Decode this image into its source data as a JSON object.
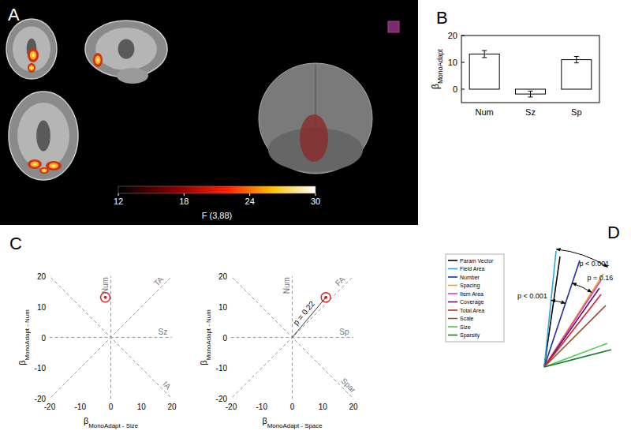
{
  "chart_data": [
    {
      "type": "brain_map",
      "panel_label": "A",
      "colorbar": {
        "range": [
          12,
          30
        ],
        "ticks": [
          12,
          18,
          24,
          30
        ],
        "label": "F (3,88)"
      }
    },
    {
      "type": "bar",
      "panel_label": "B",
      "categories": [
        "Num",
        "Sz",
        "Sp"
      ],
      "values": [
        13.1,
        -1.8,
        11.0
      ],
      "errors": [
        1.3,
        1.1,
        1.2
      ],
      "color": "#ffffff",
      "y_label": {
        "base": "β",
        "sub": "MonoAdapt"
      },
      "ylim": [
        -5,
        20
      ],
      "yticks": [
        0,
        10,
        20
      ]
    },
    {
      "type": "scatter",
      "panel_label": "C",
      "x": [
        -1.8
      ],
      "y": [
        13.1
      ],
      "color": "#e02020",
      "marker": "circle",
      "xlim": [
        -20,
        20
      ],
      "ylim": [
        -20,
        20
      ],
      "xticks": [
        -20,
        -10,
        0,
        10,
        20
      ],
      "yticks": [
        -20,
        -10,
        0,
        10,
        20
      ],
      "x_label": {
        "base": "β",
        "sub": "MonoAdapt - Size"
      },
      "y_label": {
        "base": "β",
        "sub": "MonoAdapt - Num"
      },
      "line_style": "dashed",
      "reference_lines": [
        {
          "label": "Num",
          "dx": 0,
          "dy": 1
        },
        {
          "label": "TA",
          "dx": 1,
          "dy": 1
        },
        {
          "label": "Sz",
          "dx": 1,
          "dy": 0
        },
        {
          "label": "IA",
          "dx": 1,
          "dy": -1
        }
      ]
    },
    {
      "type": "scatter",
      "x": [
        11.0
      ],
      "y": [
        13.1
      ],
      "color": "#e02020",
      "marker": "circle",
      "xlim": [
        -20,
        20
      ],
      "ylim": [
        -20,
        20
      ],
      "xticks": [
        -20,
        -10,
        0,
        10,
        20
      ],
      "yticks": [
        -20,
        -10,
        0,
        10,
        20
      ],
      "x_label": {
        "base": "β",
        "sub": "MonoAdapt - Space"
      },
      "y_label": {
        "base": "β",
        "sub": "MonoAdapt - Num"
      },
      "line_style": "dashed",
      "reference_lines": [
        {
          "label": "Num",
          "dx": 0,
          "dy": 1
        },
        {
          "label": "FA",
          "dx": 1,
          "dy": 1
        },
        {
          "label": "Sp",
          "dx": 1,
          "dy": 0
        },
        {
          "label": "Spar",
          "dx": 1,
          "dy": -1
        }
      ],
      "annotations": [
        {
          "text": "p = 0.22"
        }
      ]
    },
    {
      "type": "vectors",
      "panel_label": "D",
      "series": [
        {
          "name": "Param Vector",
          "color": "#000000",
          "x": 20,
          "y": 140
        },
        {
          "name": "Field Area",
          "color": "#29a8e0",
          "x": 15,
          "y": 147
        },
        {
          "name": "Number",
          "color": "#1f2e9e",
          "x": 45,
          "y": 135
        },
        {
          "name": "Spacing",
          "color": "#f0a020",
          "x": 75,
          "y": 118
        },
        {
          "name": "Item Area",
          "color": "#e040c0",
          "x": 72,
          "y": 110
        },
        {
          "name": "Coverage",
          "color": "#5a1a6a",
          "x": 70,
          "y": 100
        },
        {
          "name": "Total Area",
          "color": "#d02030",
          "x": 72,
          "y": 92
        },
        {
          "name": "Scale",
          "color": "#a0522d",
          "x": 78,
          "y": 78
        },
        {
          "name": "Size",
          "color": "#40d040",
          "x": 80,
          "y": 30
        },
        {
          "name": "Sparsity",
          "color": "#1a7a30",
          "x": 85,
          "y": 22
        }
      ],
      "arcs": [
        {
          "from": "Field Area",
          "to": "Spacing",
          "label": "p < 0.001"
        },
        {
          "from": "Number",
          "to": "Spacing",
          "label": "p = 0.16"
        },
        {
          "from": "Field Area",
          "to": "Number",
          "label": "p < 0.001"
        }
      ]
    }
  ]
}
